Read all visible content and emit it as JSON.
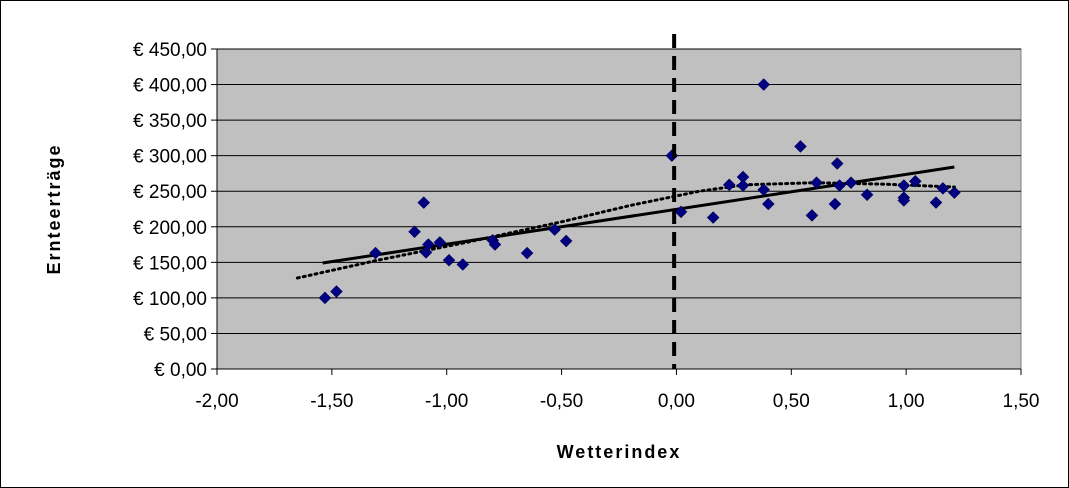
{
  "chart_data": {
    "type": "scatter",
    "title": "",
    "xlabel": "Wetterindex",
    "ylabel": "Ernteerträge",
    "xlim": [
      -2.0,
      1.5
    ],
    "ylim": [
      0,
      450
    ],
    "x_ticks": [
      "-2,00",
      "-1,50",
      "-1,00",
      "-0,50",
      "0,00",
      "0,50",
      "1,00",
      "1,50"
    ],
    "y_ticks": [
      "€ 0,00",
      "€ 50,00",
      "€ 100,00",
      "€ 150,00",
      "€ 200,00",
      "€ 250,00",
      "€ 300,00",
      "€ 350,00",
      "€ 400,00",
      "€ 450,00"
    ],
    "grid": "horizontal",
    "colors": {
      "plot_background": "#c0c0c0",
      "marker": "#000080",
      "trend_line": "#000000",
      "grid": "#000000"
    },
    "points": [
      {
        "x": -1.53,
        "y": 100
      },
      {
        "x": -1.48,
        "y": 109
      },
      {
        "x": -1.31,
        "y": 163
      },
      {
        "x": -1.14,
        "y": 193
      },
      {
        "x": -1.1,
        "y": 234
      },
      {
        "x": -1.09,
        "y": 164
      },
      {
        "x": -1.08,
        "y": 175
      },
      {
        "x": -1.03,
        "y": 178
      },
      {
        "x": -0.99,
        "y": 153
      },
      {
        "x": -0.93,
        "y": 147
      },
      {
        "x": -0.8,
        "y": 181
      },
      {
        "x": -0.79,
        "y": 175
      },
      {
        "x": -0.65,
        "y": 163
      },
      {
        "x": -0.53,
        "y": 196
      },
      {
        "x": -0.48,
        "y": 180
      },
      {
        "x": -0.02,
        "y": 300
      },
      {
        "x": 0.02,
        "y": 221
      },
      {
        "x": 0.16,
        "y": 213
      },
      {
        "x": 0.23,
        "y": 259
      },
      {
        "x": 0.29,
        "y": 270
      },
      {
        "x": 0.29,
        "y": 258
      },
      {
        "x": 0.38,
        "y": 400
      },
      {
        "x": 0.38,
        "y": 252
      },
      {
        "x": 0.4,
        "y": 232
      },
      {
        "x": 0.54,
        "y": 313
      },
      {
        "x": 0.59,
        "y": 216
      },
      {
        "x": 0.61,
        "y": 262
      },
      {
        "x": 0.69,
        "y": 232
      },
      {
        "x": 0.7,
        "y": 289
      },
      {
        "x": 0.71,
        "y": 258
      },
      {
        "x": 0.76,
        "y": 262
      },
      {
        "x": 0.83,
        "y": 245
      },
      {
        "x": 0.99,
        "y": 258
      },
      {
        "x": 0.99,
        "y": 241
      },
      {
        "x": 0.99,
        "y": 237
      },
      {
        "x": 1.04,
        "y": 264
      },
      {
        "x": 1.13,
        "y": 234
      },
      {
        "x": 1.16,
        "y": 254
      },
      {
        "x": 1.21,
        "y": 248
      }
    ],
    "linear_trend": [
      {
        "x": -1.54,
        "y": 149
      },
      {
        "x": 1.21,
        "y": 284
      }
    ],
    "polynomial_trend": [
      {
        "x": -1.65,
        "y": 128
      },
      {
        "x": -1.3,
        "y": 153
      },
      {
        "x": -0.9,
        "y": 179
      },
      {
        "x": -0.5,
        "y": 207
      },
      {
        "x": -0.2,
        "y": 230
      },
      {
        "x": 0.1,
        "y": 250
      },
      {
        "x": 0.3,
        "y": 259
      },
      {
        "x": 0.6,
        "y": 262
      },
      {
        "x": 0.9,
        "y": 260
      },
      {
        "x": 1.21,
        "y": 256
      }
    ],
    "vertical_reference_line": {
      "x": -0.01,
      "style": "dashed"
    }
  }
}
